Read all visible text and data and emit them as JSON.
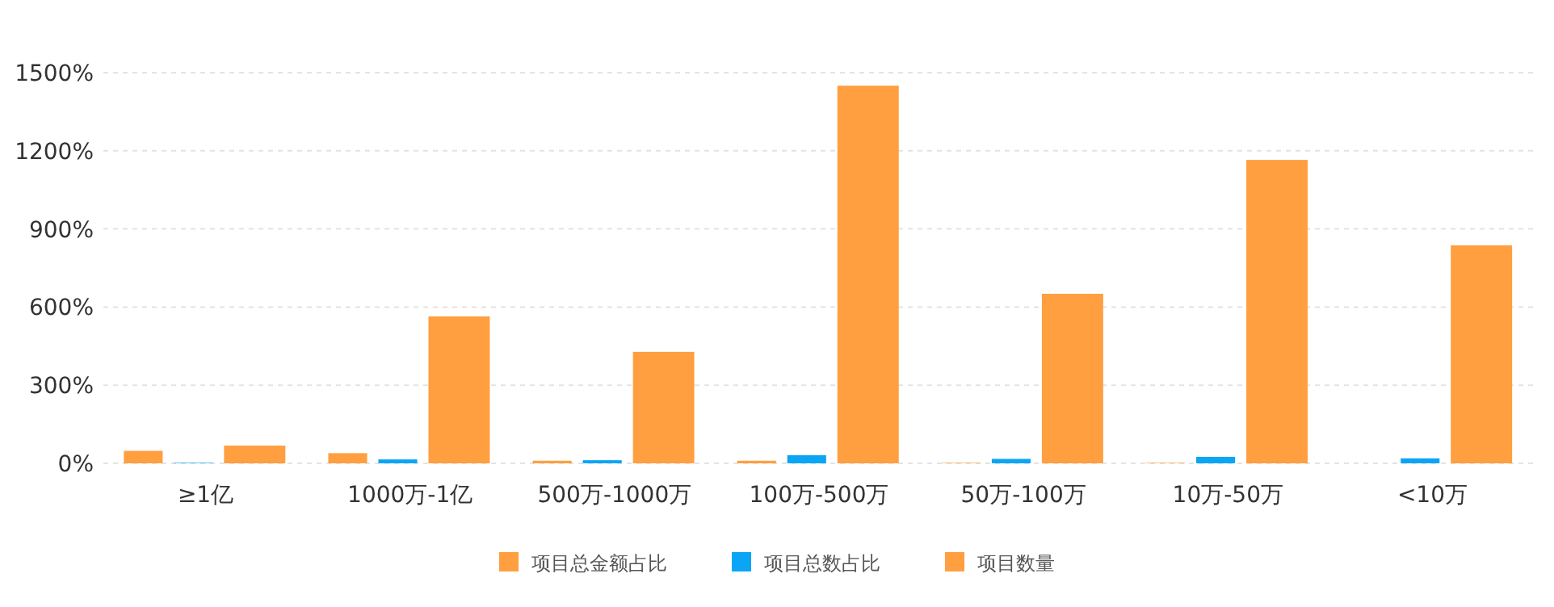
{
  "chart_data": {
    "type": "bar",
    "categories": [
      "≥1亿",
      "1000万-1亿",
      "500万-1000万",
      "100万-500万",
      "50万-100万",
      "10万-50万",
      "<10万"
    ],
    "series": [
      {
        "name": "项目总金额占比",
        "color": "#ff9f40",
        "values": [
          48,
          39,
          10,
          10,
          2,
          2,
          0
        ]
      },
      {
        "name": "项目总数占比",
        "color": "#0aa5f5",
        "values": [
          2,
          15,
          12,
          31,
          17,
          25,
          19
        ]
      },
      {
        "name": "项目数量",
        "color": "#ff9f40",
        "values": [
          68,
          564,
          428,
          1450,
          651,
          1165,
          837
        ]
      }
    ],
    "ylim": [
      0,
      1500
    ],
    "yticks": [
      {
        "value": 0,
        "label": "0%"
      },
      {
        "value": 300,
        "label": "300%"
      },
      {
        "value": 600,
        "label": "600%"
      },
      {
        "value": 900,
        "label": "900%"
      },
      {
        "value": 1200,
        "label": "1200%"
      },
      {
        "value": 1500,
        "label": "1500%"
      }
    ],
    "grid": "y",
    "legend": "bottom"
  }
}
